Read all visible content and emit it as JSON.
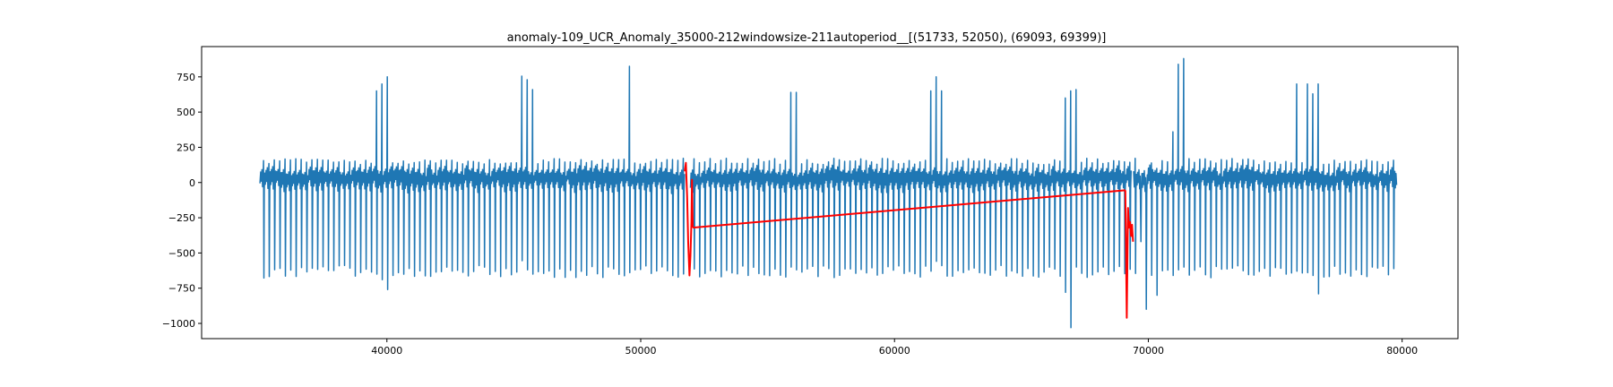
{
  "chart_data": {
    "type": "line",
    "title": "anomaly-109_UCR_Anomaly_35000-212windowsize-211autoperiod__[(51733, 52050), (69093, 69399)]",
    "xlabel": "",
    "ylabel": "",
    "xlim": [
      32700,
      82200
    ],
    "ylim": [
      -1108,
      965
    ],
    "x_ticks": [
      40000,
      50000,
      60000,
      70000,
      80000
    ],
    "x_tick_labels": [
      "40000",
      "50000",
      "60000",
      "70000",
      "80000"
    ],
    "y_ticks": [
      750,
      500,
      250,
      0,
      -250,
      -500,
      -750,
      -1000
    ],
    "y_tick_labels": [
      "750",
      "500",
      "250",
      "0",
      "−250",
      "−500",
      "−750",
      "−1000"
    ],
    "grid": false,
    "series": [
      {
        "color": "#1f77b4",
        "x_range": [
          35000,
          79800
        ],
        "beat_period": 212,
        "baseline": 20,
        "wave_amplitude": 95,
        "typical_peak": 150,
        "typical_trough": -640,
        "tall_spike_bursts": [
          {
            "x": [
              39400,
              39650,
              39900
            ],
            "peak": [
              650,
              700,
              750
            ],
            "trough": [
              -650,
              -690,
              -760
            ]
          },
          {
            "x": [
              45100,
              45350,
              45600
            ],
            "peak": [
              755,
              730,
              660
            ],
            "trough": [
              -555,
              -620,
              -650
            ]
          },
          {
            "x": [
              49500
            ],
            "peak": [
              825
            ],
            "trough": [
              -640
            ]
          },
          {
            "x": [
              55700,
              55950
            ],
            "peak": [
              640,
              640
            ],
            "trough": [
              -600,
              -620
            ]
          },
          {
            "x": [
              61200,
              61450,
              61700
            ],
            "peak": [
              650,
              750,
              650
            ],
            "trough": [
              -630,
              -560,
              -590
            ]
          },
          {
            "x": [
              66600,
              66850,
              67100
            ],
            "peak": [
              600,
              650,
              660
            ],
            "trough": [
              -780,
              -1030,
              -600
            ]
          },
          {
            "x": [
              69600,
              69850,
              70100
            ],
            "peak": [
              -200,
              -130,
              100
            ],
            "trough": [
              -420,
              -900,
              -800
            ]
          },
          {
            "x": [
              70800,
              71050,
              71300
            ],
            "peak": [
              360,
              840,
              880
            ],
            "trough": [
              -660,
              -620,
              -600
            ]
          },
          {
            "x": [
              75800,
              76050,
              76300,
              76550
            ],
            "peak": [
              700,
              700,
              630,
              700
            ],
            "trough": [
              -630,
              -640,
              -660,
              -790
            ]
          }
        ]
      },
      {
        "color": "#ff0000",
        "segments": [
          {
            "x": [
              51733,
              51780,
              51830,
              51870,
              51920,
              51960,
              52000,
              52020,
              52050
            ],
            "y": [
              80,
              140,
              -100,
              -430,
              -660,
              -520,
              -280,
              20,
              -320
            ]
          },
          {
            "x": [
              52050,
              69093
            ],
            "y": [
              -320,
              -55
            ]
          },
          {
            "x": [
              69093,
              69150,
              69200,
              69240,
              69280,
              69320,
              69360,
              69399
            ],
            "y": [
              -55,
              -960,
              -180,
              -320,
              -280,
              -380,
              -300,
              -420
            ]
          }
        ]
      }
    ]
  }
}
